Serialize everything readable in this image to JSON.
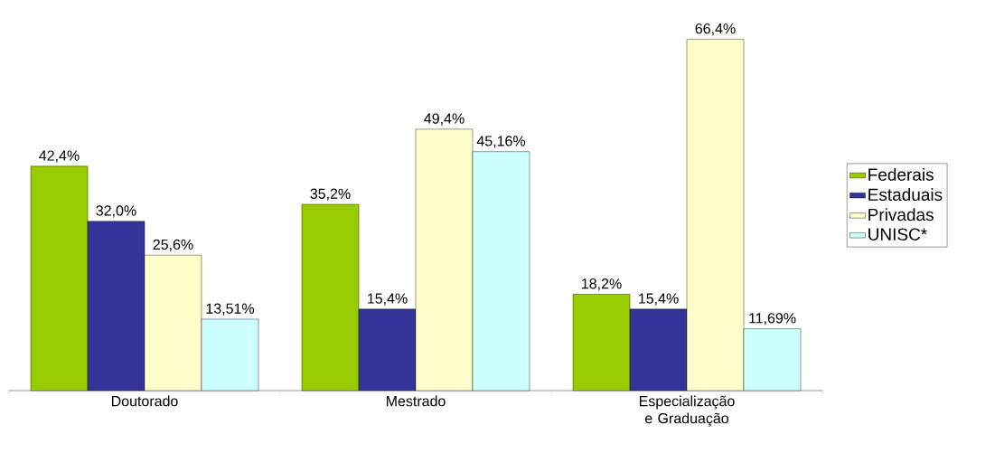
{
  "chart_data": {
    "type": "bar",
    "categories": [
      "Doutorado",
      "Mestrado",
      "Especialização e Graduação"
    ],
    "series": [
      {
        "name": "Federais",
        "color": "#99cc00",
        "values": [
          42.4,
          35.2,
          18.2
        ],
        "value_labels": [
          "42,4%",
          "35,2%",
          "18,2%"
        ]
      },
      {
        "name": "Estaduais",
        "color": "#333399",
        "values": [
          32.0,
          15.4,
          15.4
        ],
        "value_labels": [
          "32,0%",
          "15,4%",
          "15,4%"
        ]
      },
      {
        "name": "Privadas",
        "color": "#ffffcc",
        "values": [
          25.6,
          49.4,
          66.4
        ],
        "value_labels": [
          "25,6%",
          "49,4%",
          "66,4%"
        ]
      },
      {
        "name": "UNISC*",
        "color": "#ccffff",
        "values": [
          13.51,
          45.16,
          11.69
        ],
        "value_labels": [
          "13,51%",
          "45,16%",
          "11,69%"
        ]
      }
    ],
    "legend": "right"
  }
}
